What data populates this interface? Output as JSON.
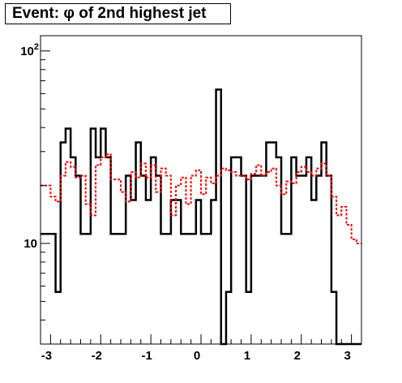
{
  "title": "Event: φ of 2nd highest jet",
  "chart_data": {
    "type": "histogram",
    "title": "Event: φ of 2nd highest jet",
    "xlabel": "",
    "ylabel": "",
    "xlim": [
      -3.2,
      3.2
    ],
    "ylim": [
      3.0,
      120.0
    ],
    "yscale": "log",
    "grid": false,
    "legend": null,
    "x_ticks": [
      -3,
      -2,
      -1,
      0,
      1,
      2,
      3
    ],
    "x_tick_labels": [
      "-3",
      "-2",
      "-1",
      "0",
      "1",
      "2",
      "3"
    ],
    "y_major_ticks": [
      10,
      100
    ],
    "y_tick_labels": [
      {
        "base": "10",
        "exp": ""
      },
      {
        "base": "10",
        "exp": "2"
      }
    ],
    "bin_edges": [
      -3.2,
      -3.1,
      -3.0,
      -2.9,
      -2.8,
      -2.7,
      -2.6,
      -2.5,
      -2.4,
      -2.3,
      -2.2,
      -2.1,
      -2.0,
      -1.9,
      -1.8,
      -1.7,
      -1.6,
      -1.5,
      -1.4,
      -1.3,
      -1.2,
      -1.1,
      -1.0,
      -0.9,
      -0.8,
      -0.7,
      -0.6,
      -0.5,
      -0.4,
      -0.3,
      -0.2,
      -0.1,
      0.0,
      0.1,
      0.2,
      0.3,
      0.4,
      0.5,
      0.6,
      0.7,
      0.8,
      0.9,
      1.0,
      1.1,
      1.2,
      1.3,
      1.4,
      1.5,
      1.6,
      1.7,
      1.8,
      1.9,
      2.0,
      2.1,
      2.2,
      2.3,
      2.4,
      2.5,
      2.6,
      2.7,
      2.8,
      2.9,
      3.0,
      3.1,
      3.2
    ],
    "series": [
      {
        "color": "#000000",
        "style": "solid",
        "values": [
          11.2,
          11.2,
          11.2,
          5.6,
          33.5,
          39.5,
          28.0,
          22.5,
          11.2,
          11.2,
          39.5,
          28.0,
          39.5,
          28.0,
          11.2,
          11.2,
          11.2,
          22.5,
          16.8,
          33.5,
          22.5,
          16.8,
          28.0,
          22.5,
          11.2,
          11.2,
          16.8,
          16.8,
          11.2,
          11.2,
          11.2,
          16.8,
          11.2,
          11.2,
          16.8,
          63.0,
          0,
          5.6,
          28.0,
          28.0,
          22.5,
          5.6,
          22.5,
          22.5,
          22.5,
          33.5,
          33.5,
          28.0,
          11.2,
          11.2,
          28.0,
          22.5,
          22.5,
          28.0,
          16.8,
          22.5,
          33.5,
          22.5,
          5.6,
          0,
          0,
          0,
          0,
          0
        ]
      },
      {
        "color": "#ff0000",
        "style": "dashed",
        "values": [
          20.0,
          20.0,
          17.5,
          16.5,
          22.5,
          26.5,
          25.0,
          22.0,
          22.5,
          16.0,
          14.0,
          25.5,
          28.0,
          29.0,
          21.5,
          21.5,
          18.5,
          16.5,
          23.5,
          22.0,
          26.0,
          22.0,
          25.5,
          18.5,
          24.5,
          22.5,
          14.0,
          20.0,
          22.0,
          16.0,
          22.5,
          24.0,
          18.0,
          22.0,
          20.5,
          22.5,
          24.5,
          24.0,
          23.5,
          22.5,
          22.5,
          21.5,
          23.0,
          25.5,
          22.5,
          23.5,
          24.5,
          20.0,
          18.0,
          21.0,
          20.5,
          23.5,
          25.0,
          23.5,
          22.5,
          24.5,
          26.0,
          22.5,
          17.5,
          14.0,
          15.5,
          12.5,
          10.5,
          10.0
        ]
      }
    ]
  }
}
